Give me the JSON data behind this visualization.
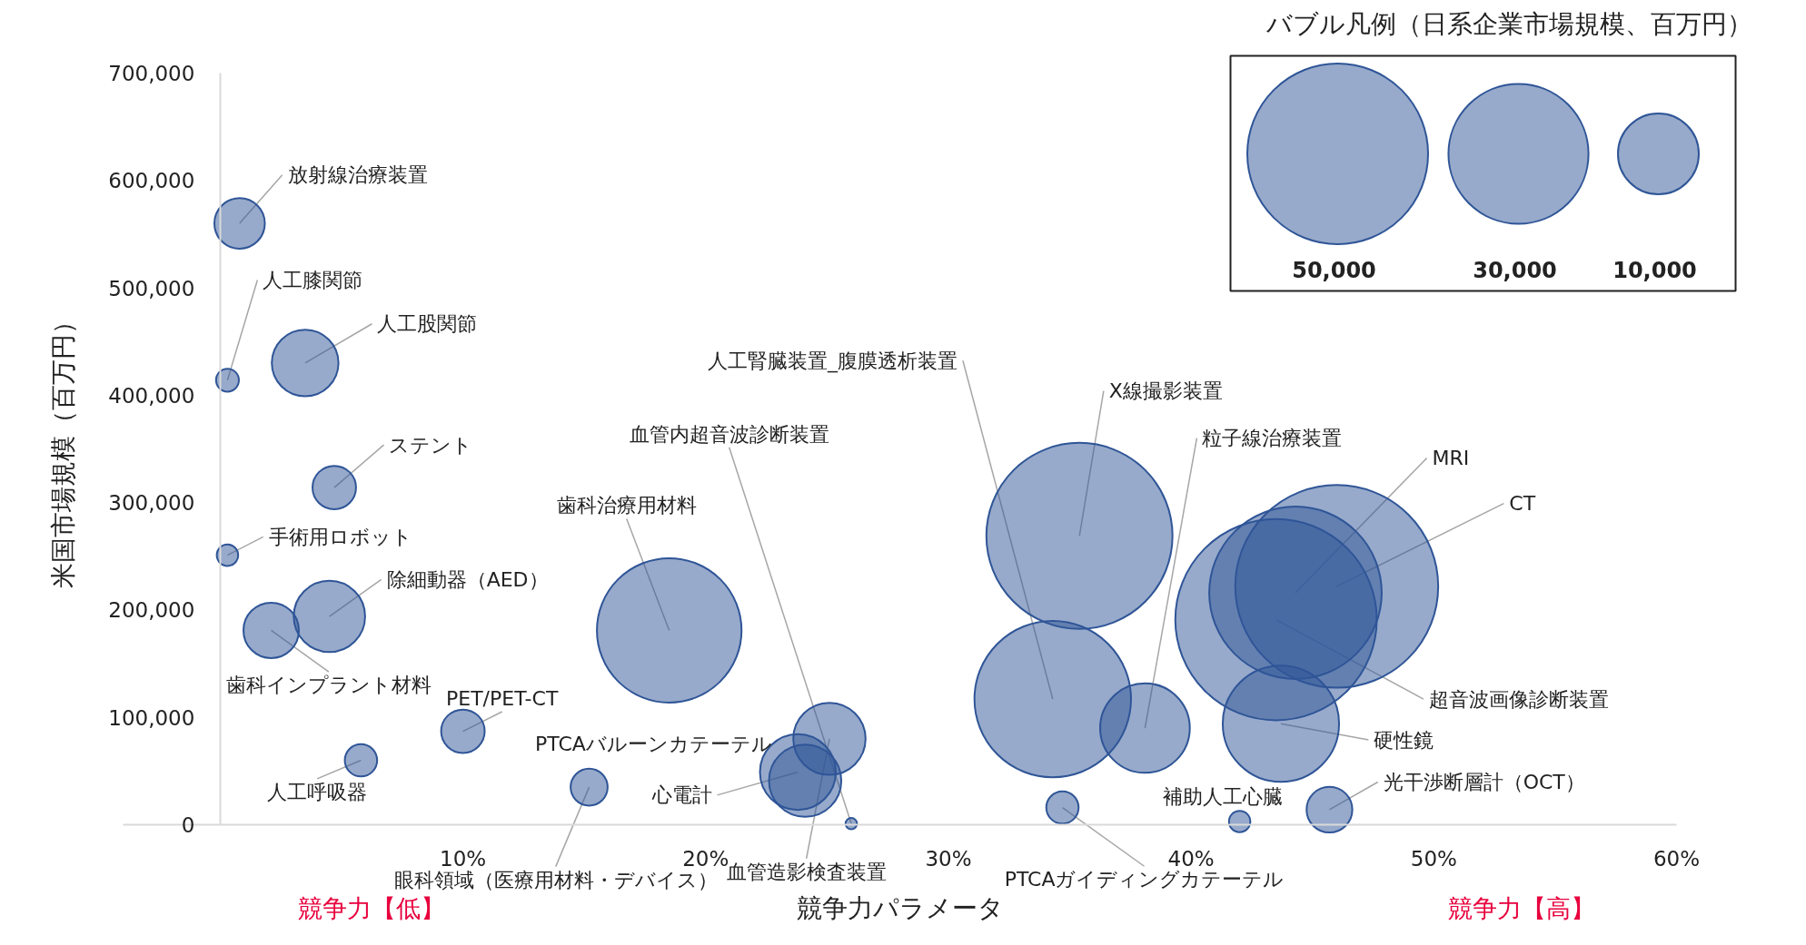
{
  "chart_data": {
    "type": "bubble",
    "xlabel": "競争力パラメータ",
    "ylabel": "米国市場規模（百万円）",
    "legend_title": "バブル凡例（日系企業市場規模、百万円）",
    "marker": "circle",
    "xlim": [
      -4,
      60
    ],
    "xticks": [
      {
        "value": 10,
        "label": "10%"
      },
      {
        "value": 20,
        "label": "20%"
      },
      {
        "value": 30,
        "label": "30%"
      },
      {
        "value": 40,
        "label": "40%"
      },
      {
        "value": 50,
        "label": "50%"
      },
      {
        "value": 60,
        "label": "60%"
      }
    ],
    "ylim": [
      0,
      700000
    ],
    "yticks": [
      {
        "value": 0,
        "label": "0"
      },
      {
        "value": 100000,
        "label": "100,000"
      },
      {
        "value": 200000,
        "label": "200,000"
      },
      {
        "value": 300000,
        "label": "300,000"
      },
      {
        "value": 400000,
        "label": "400,000"
      },
      {
        "value": 500000,
        "label": "500,000"
      },
      {
        "value": 600000,
        "label": "600,000"
      },
      {
        "value": 700000,
        "label": "700,000"
      }
    ],
    "size_legend": [
      {
        "value": 50000,
        "label": "50,000"
      },
      {
        "value": 30000,
        "label": "30,000"
      },
      {
        "value": 10000,
        "label": "10,000"
      }
    ],
    "series": [
      {
        "color": "#2f5597",
        "x": [
          0.8,
          0.3,
          3.5,
          4.7,
          0.3,
          4.5,
          2.1,
          10.0,
          5.8,
          18.5,
          15.2,
          25.1,
          24.1,
          23.8,
          26.0,
          35.4,
          34.3,
          38.1,
          34.7,
          46.0,
          44.3,
          43.5,
          43.7,
          42.0,
          45.7
        ],
        "values": [
          560000,
          414000,
          430000,
          314000,
          251000,
          194000,
          181000,
          87000,
          60000,
          181000,
          35000,
          80000,
          41000,
          49000,
          1000,
          269000,
          117000,
          90000,
          16000,
          222000,
          216000,
          191000,
          94000,
          3000,
          14000
        ],
        "sizes": [
          3900,
          800,
          6800,
          2900,
          700,
          7800,
          4700,
          2900,
          1600,
          32000,
          2100,
          8000,
          8000,
          8800,
          200,
          53000,
          37500,
          12300,
          1600,
          63000,
          45500,
          62100,
          20700,
          700,
          3200
        ]
      }
    ],
    "annotations": [
      {
        "text": "放射線治療装置",
        "x": 0.8,
        "y": 560000
      },
      {
        "text": "人工膝関節",
        "x": 0.3,
        "y": 414000
      },
      {
        "text": "人工股関節",
        "x": 3.5,
        "y": 430000
      },
      {
        "text": "ステント",
        "x": 4.7,
        "y": 314000
      },
      {
        "text": "手術用ロボット",
        "x": 0.3,
        "y": 251000
      },
      {
        "text": "除細動器（AED）",
        "x": 4.5,
        "y": 194000
      },
      {
        "text": "歯科インプラント材料",
        "x": 2.1,
        "y": 181000
      },
      {
        "text": "PET/PET-CT",
        "x": 10.0,
        "y": 87000
      },
      {
        "text": "人工呼吸器",
        "x": 5.8,
        "y": 60000
      },
      {
        "text": "歯科治療用材料",
        "x": 18.5,
        "y": 181000
      },
      {
        "text": "眼科領域（医療用材料・デバイス）",
        "x": 15.2,
        "y": 35000
      },
      {
        "text": "血管造影検査装置",
        "x": 25.1,
        "y": 80000
      },
      {
        "text": "PTCAバルーンカテーテル",
        "x": 24.1,
        "y": 41000
      },
      {
        "text": "心電計",
        "x": 23.8,
        "y": 49000
      },
      {
        "text": "血管内超音波診断装置",
        "x": 26.0,
        "y": 1000
      },
      {
        "text": "X線撮影装置",
        "x": 35.4,
        "y": 269000
      },
      {
        "text": "人工腎臓装置_腹膜透析装置",
        "x": 34.3,
        "y": 117000
      },
      {
        "text": "粒子線治療装置",
        "x": 38.1,
        "y": 90000
      },
      {
        "text": "PTCAガイディングカテーテル",
        "x": 34.7,
        "y": 16000
      },
      {
        "text": "CT",
        "x": 46.0,
        "y": 222000
      },
      {
        "text": "MRI",
        "x": 44.3,
        "y": 216000
      },
      {
        "text": "超音波画像診断装置",
        "x": 43.5,
        "y": 191000
      },
      {
        "text": "硬性鏡",
        "x": 43.7,
        "y": 94000
      },
      {
        "text": "補助人工心臓",
        "x": 42.0,
        "y": 3000
      },
      {
        "text": "光干渉断層計（OCT）",
        "x": 45.7,
        "y": 14000
      },
      "競争力【低】",
      "競争力【高】"
    ]
  }
}
